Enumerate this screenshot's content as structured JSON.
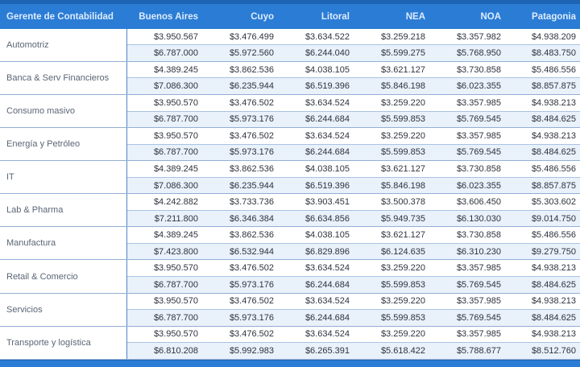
{
  "chart_data": {
    "type": "table",
    "title": "Gerente de Contabilidad",
    "columns": [
      "Gerente de Contabilidad",
      "Buenos Aires",
      "Cuyo",
      "Litoral",
      "NEA",
      "NOA",
      "Patagonia"
    ],
    "layout": {
      "grid": "each industry label spans two rows",
      "row_pattern": [
        "min-salary row (white)",
        "max-salary row (light blue)"
      ],
      "legend_position": "none"
    },
    "groups": [
      {
        "label": "Automotriz",
        "rows": [
          [
            "$3.950.567",
            "$3.476.499",
            "$3.634.522",
            "$3.259.218",
            "$3.357.982",
            "$4.938.209"
          ],
          [
            "$6.787.000",
            "$5.972.560",
            "$6.244.040",
            "$5.599.275",
            "$5.768.950",
            "$8.483.750"
          ]
        ]
      },
      {
        "label": "Banca & Serv Financieros",
        "rows": [
          [
            "$4.389.245",
            "$3.862.536",
            "$4.038.105",
            "$3.621.127",
            "$3.730.858",
            "$5.486.556"
          ],
          [
            "$7.086.300",
            "$6.235.944",
            "$6.519.396",
            "$5.846.198",
            "$6.023.355",
            "$8.857.875"
          ]
        ]
      },
      {
        "label": "Consumo masivo",
        "rows": [
          [
            "$3.950.570",
            "$3.476.502",
            "$3.634.524",
            "$3.259.220",
            "$3.357.985",
            "$4.938.213"
          ],
          [
            "$6.787.700",
            "$5.973.176",
            "$6.244.684",
            "$5.599.853",
            "$5.769.545",
            "$8.484.625"
          ]
        ]
      },
      {
        "label": "Energía y Petróleo",
        "rows": [
          [
            "$3.950.570",
            "$3.476.502",
            "$3.634.524",
            "$3.259.220",
            "$3.357.985",
            "$4.938.213"
          ],
          [
            "$6.787.700",
            "$5.973.176",
            "$6.244.684",
            "$5.599.853",
            "$5.769.545",
            "$8.484.625"
          ]
        ]
      },
      {
        "label": "IT",
        "rows": [
          [
            "$4.389.245",
            "$3.862.536",
            "$4.038.105",
            "$3.621.127",
            "$3.730.858",
            "$5.486.556"
          ],
          [
            "$7.086.300",
            "$6.235.944",
            "$6.519.396",
            "$5.846.198",
            "$6.023.355",
            "$8.857.875"
          ]
        ]
      },
      {
        "label": "Lab & Pharma",
        "rows": [
          [
            "$4.242.882",
            "$3.733.736",
            "$3.903.451",
            "$3.500.378",
            "$3.606.450",
            "$5.303.602"
          ],
          [
            "$7.211.800",
            "$6.346.384",
            "$6.634.856",
            "$5.949.735",
            "$6.130.030",
            "$9.014.750"
          ]
        ]
      },
      {
        "label": "Manufactura",
        "rows": [
          [
            "$4.389.245",
            "$3.862.536",
            "$4.038.105",
            "$3.621.127",
            "$3.730.858",
            "$5.486.556"
          ],
          [
            "$7.423.800",
            "$6.532.944",
            "$6.829.896",
            "$6.124.635",
            "$6.310.230",
            "$9.279.750"
          ]
        ]
      },
      {
        "label": "Retail & Comercio",
        "rows": [
          [
            "$3.950.570",
            "$3.476.502",
            "$3.634.524",
            "$3.259.220",
            "$3.357.985",
            "$4.938.213"
          ],
          [
            "$6.787.700",
            "$5.973.176",
            "$6.244.684",
            "$5.599.853",
            "$5.769.545",
            "$8.484.625"
          ]
        ]
      },
      {
        "label": "Servicios",
        "rows": [
          [
            "$3.950.570",
            "$3.476.502",
            "$3.634.524",
            "$3.259.220",
            "$3.357.985",
            "$4.938.213"
          ],
          [
            "$6.787.700",
            "$5.973.176",
            "$6.244.684",
            "$5.599.853",
            "$5.769.545",
            "$8.484.625"
          ]
        ]
      },
      {
        "label": "Transporte y logística",
        "rows": [
          [
            "$3.950.570",
            "$3.476.502",
            "$3.634.524",
            "$3.259.220",
            "$3.357.985",
            "$4.938.213"
          ],
          [
            "$6.810.208",
            "$5.992.983",
            "$6.265.391",
            "$5.618.422",
            "$5.788.677",
            "$8.512.760"
          ]
        ]
      }
    ]
  },
  "colors": {
    "header_bg": "#2b7cd5",
    "header_text": "#ddecfb",
    "top_strip": "#1d64b4",
    "alt_row_bg": "#e9f1fb",
    "row_border": "#a9c3e2",
    "group_border": "#93afd4",
    "label_divider": "#4f86c9",
    "label_text": "#5a6575",
    "value_text": "#2e333c",
    "footer_bar": "#2b7cd5"
  }
}
